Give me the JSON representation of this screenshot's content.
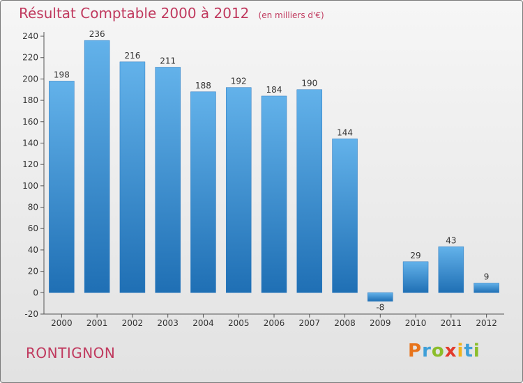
{
  "chart_data": {
    "type": "bar",
    "title": "Résultat Comptable 2000 à 2012",
    "subtitle": "(en milliers d'€)",
    "categories": [
      "2000",
      "2001",
      "2002",
      "2003",
      "2004",
      "2005",
      "2006",
      "2007",
      "2008",
      "2009",
      "2010",
      "2011",
      "2012"
    ],
    "values": [
      198,
      236,
      216,
      211,
      188,
      192,
      184,
      190,
      144,
      -8,
      29,
      43,
      9
    ],
    "ylim": [
      -20,
      240
    ],
    "yticks": [
      -20,
      0,
      20,
      40,
      60,
      80,
      100,
      120,
      140,
      160,
      180,
      200,
      220,
      240
    ],
    "grid": false,
    "bar_color": "#3d8fd6",
    "xlabel": "",
    "ylabel": ""
  },
  "footer": {
    "commune": "RONTIGNON",
    "brand_letters": [
      "P",
      "r",
      "o",
      "x",
      "i",
      "t",
      "i"
    ],
    "brand_colors": [
      "#e8741c",
      "#3e9fd8",
      "#8bbd2a",
      "#e23a2c",
      "#f2b31b",
      "#3e9fd8",
      "#8bbd2a"
    ]
  },
  "colors": {
    "title": "#c0395e",
    "axis": "#333333",
    "bar_top": "#63b2ea",
    "bar_bottom": "#1f6fb4"
  }
}
